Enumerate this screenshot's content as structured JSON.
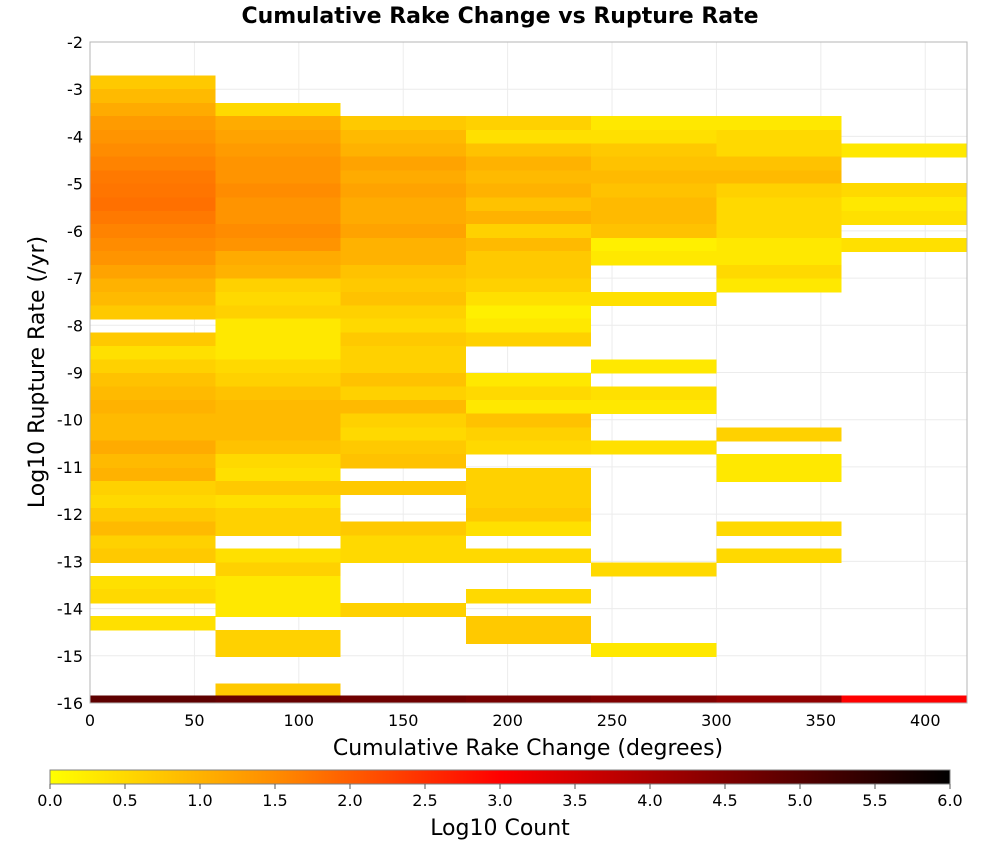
{
  "chart_data": {
    "type": "heatmap",
    "title": "Cumulative Rake Change vs Rupture Rate",
    "xlabel": "Cumulative Rake Change (degrees)",
    "ylabel": "Log10 Rupture Rate (/yr)",
    "xlim": [
      0,
      420
    ],
    "ylim": [
      -16,
      -2
    ],
    "xticks": [
      "0",
      "50",
      "100",
      "150",
      "200",
      "250",
      "300",
      "350",
      "400"
    ],
    "yticks": [
      "-2",
      "-3",
      "-4",
      "-5",
      "-6",
      "-7",
      "-8",
      "-9",
      "-10",
      "-11",
      "-12",
      "-13",
      "-14",
      "-15",
      "-16"
    ],
    "grid": true,
    "colorbar": {
      "label": "Log10 Count",
      "range": [
        0,
        6
      ],
      "ticks": [
        "0.0",
        "0.5",
        "1.0",
        "1.5",
        "2.0",
        "2.5",
        "3.0",
        "3.5",
        "4.0",
        "4.5",
        "5.0",
        "5.5",
        "6.0"
      ],
      "colors": [
        "#ffff00",
        "#ff8c00",
        "#ff0000",
        "#800000",
        "#000000"
      ]
    },
    "bin_width_x": 60,
    "bin_height_y": 0.287,
    "columns": [
      {
        "x_start": 0,
        "x_end": 60,
        "cells": [
          [
            -2.71,
            0.7
          ],
          [
            -3.0,
            0.9
          ],
          [
            -3.29,
            1.1
          ],
          [
            -3.57,
            1.3
          ],
          [
            -3.86,
            1.4
          ],
          [
            -4.15,
            1.5
          ],
          [
            -4.43,
            1.6
          ],
          [
            -4.72,
            1.7
          ],
          [
            -5.0,
            1.75
          ],
          [
            -5.29,
            1.8
          ],
          [
            -5.58,
            1.7
          ],
          [
            -5.86,
            1.6
          ],
          [
            -6.15,
            1.5
          ],
          [
            -6.43,
            1.4
          ],
          [
            -6.72,
            1.2
          ],
          [
            -7.01,
            1.0
          ],
          [
            -7.29,
            0.9
          ],
          [
            -7.58,
            0.7
          ],
          [
            -8.15,
            0.7
          ],
          [
            -8.44,
            0.4
          ],
          [
            -8.72,
            0.6
          ],
          [
            -9.01,
            0.8
          ],
          [
            -9.3,
            0.9
          ],
          [
            -9.58,
            1.0
          ],
          [
            -9.87,
            0.9
          ],
          [
            -10.16,
            0.9
          ],
          [
            -10.44,
            1.1
          ],
          [
            -10.73,
            0.9
          ],
          [
            -11.02,
            1.0
          ],
          [
            -11.3,
            0.6
          ],
          [
            -11.59,
            0.5
          ],
          [
            -11.87,
            0.7
          ],
          [
            -12.16,
            0.9
          ],
          [
            -12.45,
            0.6
          ],
          [
            -12.73,
            0.7
          ],
          [
            -13.31,
            0.4
          ],
          [
            -13.59,
            0.5
          ],
          [
            -14.16,
            0.4
          ]
        ]
      },
      {
        "x_start": 60,
        "x_end": 120,
        "cells": [
          [
            -3.29,
            0.5
          ],
          [
            -3.57,
            1.1
          ],
          [
            -3.86,
            1.2
          ],
          [
            -4.15,
            1.3
          ],
          [
            -4.43,
            1.4
          ],
          [
            -4.72,
            1.4
          ],
          [
            -5.0,
            1.5
          ],
          [
            -5.29,
            1.4
          ],
          [
            -5.58,
            1.4
          ],
          [
            -5.86,
            1.5
          ],
          [
            -6.15,
            1.4
          ],
          [
            -6.43,
            1.1
          ],
          [
            -6.72,
            1.0
          ],
          [
            -7.01,
            0.6
          ],
          [
            -7.29,
            0.5
          ],
          [
            -7.58,
            0.6
          ],
          [
            -7.86,
            0.3
          ],
          [
            -8.15,
            0.3
          ],
          [
            -8.44,
            0.3
          ],
          [
            -8.72,
            0.5
          ],
          [
            -9.01,
            0.6
          ],
          [
            -9.3,
            0.8
          ],
          [
            -9.58,
            0.9
          ],
          [
            -9.87,
            0.9
          ],
          [
            -10.16,
            0.9
          ],
          [
            -10.44,
            0.8
          ],
          [
            -10.73,
            0.5
          ],
          [
            -11.02,
            0.4
          ],
          [
            -11.3,
            0.7
          ],
          [
            -11.59,
            0.4
          ],
          [
            -11.87,
            0.6
          ],
          [
            -12.16,
            0.6
          ],
          [
            -12.73,
            0.4
          ],
          [
            -13.02,
            0.6
          ],
          [
            -13.31,
            0.3
          ],
          [
            -13.59,
            0.3
          ],
          [
            -13.88,
            0.3
          ],
          [
            -14.45,
            0.6
          ],
          [
            -14.73,
            0.6
          ],
          [
            -15.59,
            0.7
          ]
        ]
      },
      {
        "x_start": 120,
        "x_end": 180,
        "cells": [
          [
            -3.57,
            0.7
          ],
          [
            -3.86,
            0.9
          ],
          [
            -4.15,
            1.0
          ],
          [
            -4.43,
            1.2
          ],
          [
            -4.72,
            1.1
          ],
          [
            -5.0,
            1.2
          ],
          [
            -5.29,
            1.1
          ],
          [
            -5.58,
            1.1
          ],
          [
            -5.86,
            1.2
          ],
          [
            -6.15,
            1.0
          ],
          [
            -6.43,
            1.0
          ],
          [
            -6.72,
            0.8
          ],
          [
            -7.01,
            0.7
          ],
          [
            -7.29,
            0.8
          ],
          [
            -7.58,
            0.6
          ],
          [
            -7.86,
            0.5
          ],
          [
            -8.15,
            0.7
          ],
          [
            -8.44,
            0.6
          ],
          [
            -8.72,
            0.6
          ],
          [
            -9.01,
            0.8
          ],
          [
            -9.3,
            0.6
          ],
          [
            -9.58,
            0.9
          ],
          [
            -9.87,
            0.6
          ],
          [
            -10.16,
            0.5
          ],
          [
            -10.44,
            0.7
          ],
          [
            -10.73,
            0.8
          ],
          [
            -11.3,
            0.7
          ],
          [
            -12.16,
            0.7
          ],
          [
            -12.45,
            0.5
          ],
          [
            -12.73,
            0.5
          ],
          [
            -13.88,
            0.6
          ]
        ]
      },
      {
        "x_start": 180,
        "x_end": 240,
        "cells": [
          [
            -3.57,
            0.6
          ],
          [
            -3.86,
            0.4
          ],
          [
            -4.15,
            0.8
          ],
          [
            -4.43,
            1.0
          ],
          [
            -4.72,
            0.9
          ],
          [
            -5.0,
            1.0
          ],
          [
            -5.29,
            0.8
          ],
          [
            -5.58,
            1.0
          ],
          [
            -5.86,
            0.6
          ],
          [
            -6.15,
            0.9
          ],
          [
            -6.43,
            0.7
          ],
          [
            -6.72,
            0.7
          ],
          [
            -7.01,
            0.6
          ],
          [
            -7.29,
            0.4
          ],
          [
            -7.58,
            0.2
          ],
          [
            -7.86,
            0.3
          ],
          [
            -8.15,
            0.6
          ],
          [
            -9.01,
            0.3
          ],
          [
            -9.3,
            0.5
          ],
          [
            -9.58,
            0.3
          ],
          [
            -9.87,
            0.8
          ],
          [
            -10.16,
            0.6
          ],
          [
            -10.44,
            0.5
          ],
          [
            -11.02,
            0.6
          ],
          [
            -11.3,
            0.6
          ],
          [
            -11.59,
            0.6
          ],
          [
            -11.87,
            0.7
          ],
          [
            -12.16,
            0.4
          ],
          [
            -12.73,
            0.5
          ],
          [
            -13.59,
            0.5
          ],
          [
            -14.16,
            0.7
          ],
          [
            -14.45,
            0.7
          ]
        ]
      },
      {
        "x_start": 240,
        "x_end": 300,
        "cells": [
          [
            -3.57,
            0.3
          ],
          [
            -3.86,
            0.4
          ],
          [
            -4.15,
            0.7
          ],
          [
            -4.43,
            0.8
          ],
          [
            -4.72,
            0.9
          ],
          [
            -5.0,
            0.8
          ],
          [
            -5.29,
            0.9
          ],
          [
            -5.58,
            0.9
          ],
          [
            -5.86,
            0.8
          ],
          [
            -6.15,
            0.2
          ],
          [
            -6.43,
            0.3
          ],
          [
            -7.29,
            0.4
          ],
          [
            -8.72,
            0.3
          ],
          [
            -9.3,
            0.4
          ],
          [
            -9.58,
            0.3
          ],
          [
            -10.44,
            0.4
          ],
          [
            -13.02,
            0.5
          ],
          [
            -14.73,
            0.3
          ]
        ]
      },
      {
        "x_start": 300,
        "x_end": 360,
        "cells": [
          [
            -3.57,
            0.3
          ],
          [
            -3.86,
            0.5
          ],
          [
            -4.15,
            0.5
          ],
          [
            -4.43,
            0.8
          ],
          [
            -4.72,
            0.9
          ],
          [
            -5.0,
            0.6
          ],
          [
            -5.29,
            0.5
          ],
          [
            -5.58,
            0.5
          ],
          [
            -5.86,
            0.5
          ],
          [
            -6.15,
            0.3
          ],
          [
            -6.43,
            0.3
          ],
          [
            -6.72,
            0.5
          ],
          [
            -7.01,
            0.3
          ],
          [
            -10.16,
            0.6
          ],
          [
            -10.73,
            0.3
          ],
          [
            -11.02,
            0.3
          ],
          [
            -12.16,
            0.5
          ],
          [
            -12.73,
            0.5
          ]
        ]
      },
      {
        "x_start": 360,
        "x_end": 420,
        "cells": [
          [
            -4.15,
            0.3
          ],
          [
            -4.99,
            0.5
          ],
          [
            -5.28,
            0.3
          ],
          [
            -5.58,
            0.4
          ],
          [
            -6.15,
            0.4
          ]
        ]
      }
    ],
    "bottom_row": {
      "y_start": -16,
      "y_end": -15.84,
      "cells": [
        {
          "x_start": 0,
          "x_end": 60,
          "value": 4.9
        },
        {
          "x_start": 60,
          "x_end": 120,
          "value": 4.8
        },
        {
          "x_start": 120,
          "x_end": 180,
          "value": 4.7
        },
        {
          "x_start": 180,
          "x_end": 240,
          "value": 4.6
        },
        {
          "x_start": 240,
          "x_end": 300,
          "value": 4.5
        },
        {
          "x_start": 300,
          "x_end": 360,
          "value": 4.3
        },
        {
          "x_start": 360,
          "x_end": 420,
          "value": 3.0
        }
      ]
    }
  }
}
